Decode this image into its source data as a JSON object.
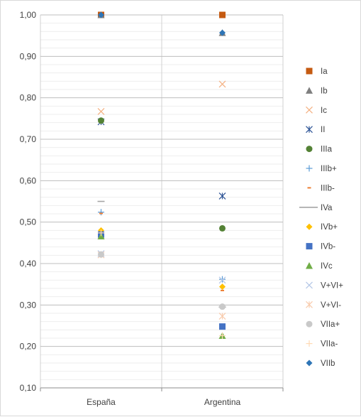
{
  "chart_data": {
    "type": "scatter",
    "title": "",
    "xlabel": "",
    "ylabel": "",
    "categories": [
      "España",
      "Argentina"
    ],
    "ylim": [
      0.1,
      1.0
    ],
    "y_ticks": [
      "0,10",
      "0,20",
      "0,30",
      "0,40",
      "0,50",
      "0,60",
      "0,70",
      "0,80",
      "0,90",
      "1,00"
    ],
    "grid": "major horizontal and minor horizontal gridlines",
    "legend_position": "right",
    "series": [
      {
        "name": "Ia",
        "marker": "square",
        "color": "#C55A11",
        "values": [
          1.0,
          1.0
        ]
      },
      {
        "name": "Ib",
        "marker": "triangle",
        "color": "#7F7F7F",
        "values": [
          1.0,
          0.957
        ]
      },
      {
        "name": "Ic",
        "marker": "x",
        "color": "#F4B183",
        "values": [
          0.767,
          0.833
        ]
      },
      {
        "name": "II",
        "marker": "star",
        "color": "#2F5597",
        "values": [
          0.742,
          0.563
        ]
      },
      {
        "name": "IIIa",
        "marker": "circle",
        "color": "#548235",
        "values": [
          0.745,
          0.485
        ]
      },
      {
        "name": "IIIb+",
        "marker": "plus",
        "color": "#5B9BD5",
        "values": [
          0.524,
          0.362
        ]
      },
      {
        "name": "IIIb-",
        "marker": "dash",
        "color": "#ED7D31",
        "values": [
          0.521,
          0.335
        ]
      },
      {
        "name": "IVa",
        "marker": "line",
        "color": "#A5A5A5",
        "values": [
          0.55,
          0.295
        ]
      },
      {
        "name": "IVb+",
        "marker": "diamond",
        "color": "#FFC000",
        "values": [
          0.48,
          0.344
        ]
      },
      {
        "name": "IVb-",
        "marker": "square",
        "color": "#4472C4",
        "values": [
          0.47,
          0.248
        ]
      },
      {
        "name": "IVc",
        "marker": "triangle",
        "color": "#70AD47",
        "values": [
          0.466,
          0.226
        ]
      },
      {
        "name": "V+VI+",
        "marker": "x",
        "color": "#B4C7E7",
        "values": [
          0.424,
          0.36
        ]
      },
      {
        "name": "V+VI-",
        "marker": "star",
        "color": "#F8CBAD",
        "values": [
          0.421,
          0.273
        ]
      },
      {
        "name": "VIIa+",
        "marker": "circle",
        "color": "#C9C9C9",
        "values": [
          0.422,
          0.296
        ]
      },
      {
        "name": "VIIa-",
        "marker": "plus",
        "color": "#FFD9B3",
        "values": [
          0.474,
          0.226
        ]
      },
      {
        "name": "VIIb",
        "marker": "diamond",
        "color": "#2E75B6",
        "values": [
          1.0,
          0.957
        ]
      }
    ]
  }
}
